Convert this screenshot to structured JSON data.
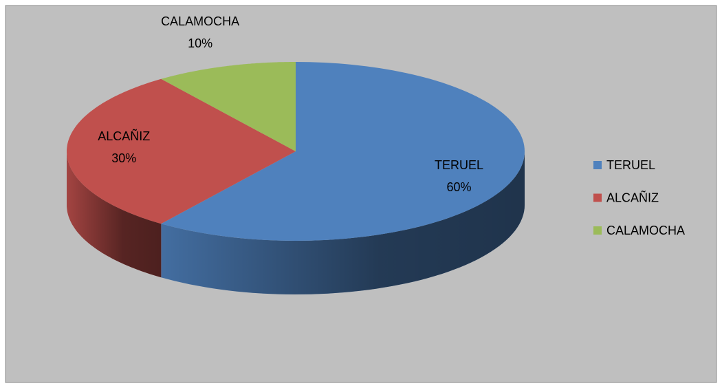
{
  "chart_data": {
    "type": "pie",
    "categories": [
      "TERUEL",
      "ALCAÑIZ",
      "CALAMOCHA"
    ],
    "values": [
      60,
      30,
      10
    ],
    "value_labels": [
      "60%",
      "30%",
      "10%"
    ],
    "colors": [
      "#4f81bd",
      "#c0504d",
      "#9bbb59"
    ],
    "legend": "right"
  }
}
